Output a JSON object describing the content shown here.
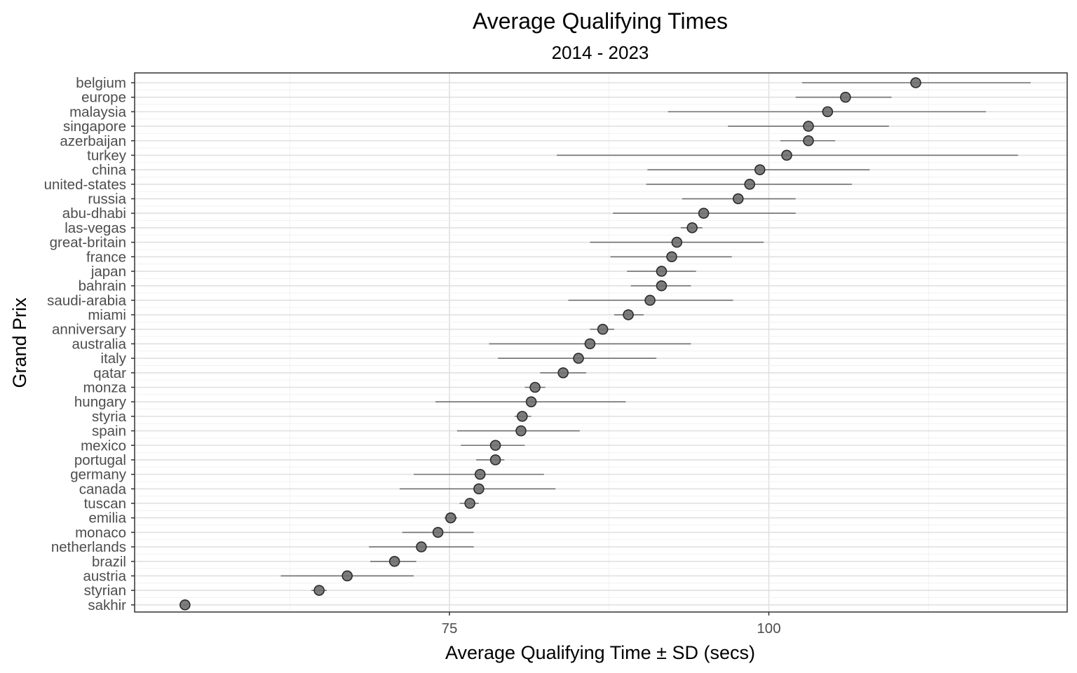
{
  "chart_data": {
    "type": "scatter",
    "title": "Average Qualifying Times",
    "subtitle": "2014 - 2023",
    "xlabel": "Average Qualifying Time ± SD (secs)",
    "ylabel": "Grand Prix",
    "xlim": [
      54.2,
      127.5
    ],
    "x_ticks": [
      75,
      100
    ],
    "grid": true,
    "points": [
      {
        "category": "belgium",
        "mean": 111.5,
        "lo": 102.6,
        "hi": 120.5
      },
      {
        "category": "europe",
        "mean": 106.0,
        "lo": 102.1,
        "hi": 109.6
      },
      {
        "category": "malaysia",
        "mean": 104.6,
        "lo": 92.1,
        "hi": 117.0
      },
      {
        "category": "singapore",
        "mean": 103.1,
        "lo": 96.8,
        "hi": 109.4
      },
      {
        "category": "azerbaijan",
        "mean": 103.1,
        "lo": 100.9,
        "hi": 105.2
      },
      {
        "category": "turkey",
        "mean": 101.4,
        "lo": 83.4,
        "hi": 119.5
      },
      {
        "category": "china",
        "mean": 99.3,
        "lo": 90.5,
        "hi": 107.9
      },
      {
        "category": "united-states",
        "mean": 98.5,
        "lo": 90.4,
        "hi": 106.5
      },
      {
        "category": "russia",
        "mean": 97.6,
        "lo": 93.2,
        "hi": 102.1
      },
      {
        "category": "abu-dhabi",
        "mean": 94.9,
        "lo": 87.8,
        "hi": 102.1
      },
      {
        "category": "las-vegas",
        "mean": 94.0,
        "lo": 93.1,
        "hi": 94.8
      },
      {
        "category": "great-britain",
        "mean": 92.8,
        "lo": 86.0,
        "hi": 99.6
      },
      {
        "category": "france",
        "mean": 92.4,
        "lo": 87.6,
        "hi": 97.1
      },
      {
        "category": "japan",
        "mean": 91.6,
        "lo": 88.9,
        "hi": 94.3
      },
      {
        "category": "bahrain",
        "mean": 91.6,
        "lo": 89.2,
        "hi": 93.9
      },
      {
        "category": "saudi-arabia",
        "mean": 90.7,
        "lo": 84.3,
        "hi": 97.2
      },
      {
        "category": "miami",
        "mean": 89.0,
        "lo": 87.9,
        "hi": 90.2
      },
      {
        "category": "anniversary",
        "mean": 87.0,
        "lo": 86.0,
        "hi": 87.9
      },
      {
        "category": "australia",
        "mean": 86.0,
        "lo": 78.1,
        "hi": 93.9
      },
      {
        "category": "italy",
        "mean": 85.1,
        "lo": 78.8,
        "hi": 91.2
      },
      {
        "category": "qatar",
        "mean": 83.9,
        "lo": 82.1,
        "hi": 85.7
      },
      {
        "category": "monza",
        "mean": 81.7,
        "lo": 80.9,
        "hi": 82.5
      },
      {
        "category": "hungary",
        "mean": 81.4,
        "lo": 73.9,
        "hi": 88.8
      },
      {
        "category": "styria",
        "mean": 80.7,
        "lo": 80.1,
        "hi": 81.4
      },
      {
        "category": "spain",
        "mean": 80.6,
        "lo": 75.6,
        "hi": 85.2
      },
      {
        "category": "mexico",
        "mean": 78.6,
        "lo": 75.9,
        "hi": 80.9
      },
      {
        "category": "portugal",
        "mean": 78.6,
        "lo": 77.1,
        "hi": 79.3
      },
      {
        "category": "germany",
        "mean": 77.4,
        "lo": 72.2,
        "hi": 82.4
      },
      {
        "category": "canada",
        "mean": 77.3,
        "lo": 71.1,
        "hi": 83.3
      },
      {
        "category": "tuscan",
        "mean": 76.6,
        "lo": 75.8,
        "hi": 77.3
      },
      {
        "category": "emilia",
        "mean": 75.1,
        "lo": 74.6,
        "hi": 75.6
      },
      {
        "category": "monaco",
        "mean": 74.1,
        "lo": 71.3,
        "hi": 76.9
      },
      {
        "category": "netherlands",
        "mean": 72.8,
        "lo": 68.7,
        "hi": 76.9
      },
      {
        "category": "brazil",
        "mean": 70.7,
        "lo": 68.8,
        "hi": 72.4
      },
      {
        "category": "austria",
        "mean": 67.0,
        "lo": 61.8,
        "hi": 72.2
      },
      {
        "category": "styrian",
        "mean": 64.8,
        "lo": 64.2,
        "hi": 65.4
      },
      {
        "category": "sakhir",
        "mean": 54.3,
        "lo": 54.2,
        "hi": 54.5
      }
    ],
    "colors": {
      "point_fill": "#6e6e6e",
      "point_stroke": "#2b2b2b",
      "errorbar": "#707070",
      "grid_major": "#e0e0e0",
      "grid_minor": "#f1f1f1",
      "border": "#333333",
      "tick_text": "#4d4d4d"
    }
  }
}
